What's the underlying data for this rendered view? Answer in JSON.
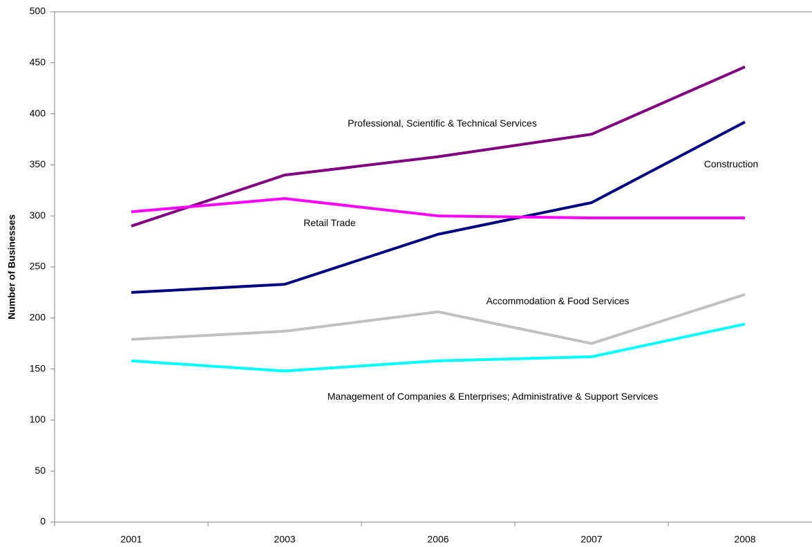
{
  "chart_data": {
    "type": "line",
    "y_label": "Number of Businesses",
    "categories": [
      "2001",
      "2003",
      "2006",
      "2007",
      "2008"
    ],
    "series": [
      {
        "name": "Professional, Scientific & Technical Services",
        "color": "#800080",
        "values": [
          290,
          340,
          358,
          380,
          446
        ]
      },
      {
        "name": "Construction",
        "color": "#000080",
        "values": [
          225,
          233,
          282,
          313,
          392
        ]
      },
      {
        "name": "Retail Trade",
        "color": "#ff00ff",
        "values": [
          304,
          317,
          300,
          298,
          298
        ]
      },
      {
        "name": "Accommodation & Food Services",
        "color": "#c0c0c0",
        "values": [
          179,
          187,
          206,
          175,
          223
        ]
      },
      {
        "name": "Management of Companies & Enterprises; Administrative & Support Services",
        "color": "#00ffff",
        "values": [
          158,
          148,
          158,
          162,
          194
        ]
      }
    ],
    "ylim": [
      0,
      500
    ],
    "yticks": [
      0,
      50,
      100,
      150,
      200,
      250,
      300,
      350,
      400,
      450,
      500
    ]
  }
}
